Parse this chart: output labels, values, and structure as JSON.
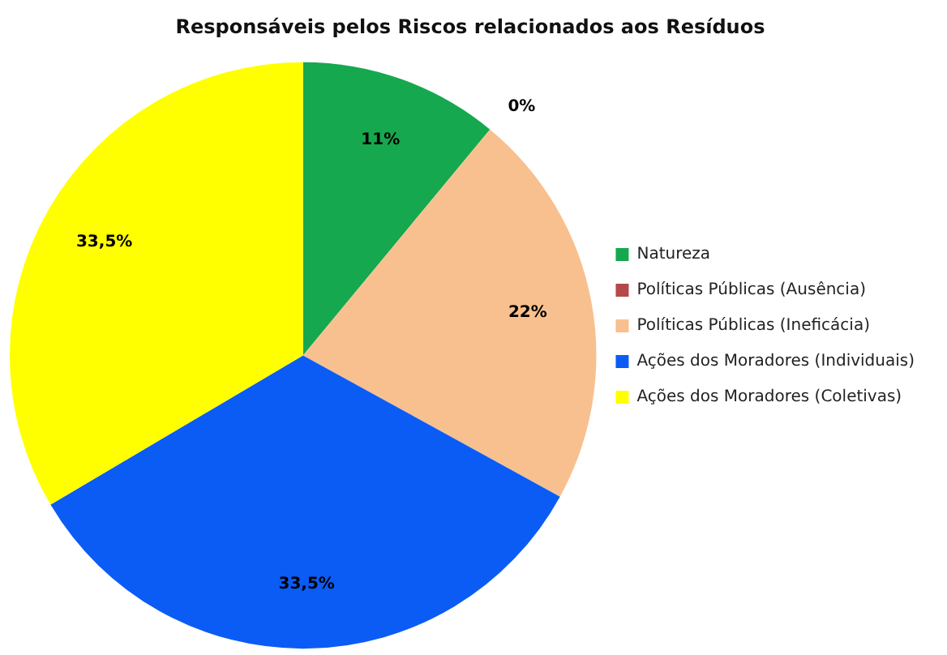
{
  "chart_data": {
    "type": "pie",
    "title": "Responsáveis pelos Riscos relacionados aos Resíduos",
    "categories": [
      "Natureza",
      "Políticas Públicas (Ausência)",
      "Políticas Públicas (Ineficácia)",
      "Ações dos Moradores (Individuais)",
      "Ações dos Moradores (Coletivas)"
    ],
    "values": [
      11,
      0,
      22,
      33.5,
      33.5
    ],
    "colors": [
      "#16a84e",
      "#b5484a",
      "#f8c08e",
      "#0a5cf5",
      "#ffff00"
    ],
    "value_labels": [
      "11%",
      "0%",
      "22%",
      "33,5%",
      "33,5%"
    ],
    "legend": "right"
  }
}
